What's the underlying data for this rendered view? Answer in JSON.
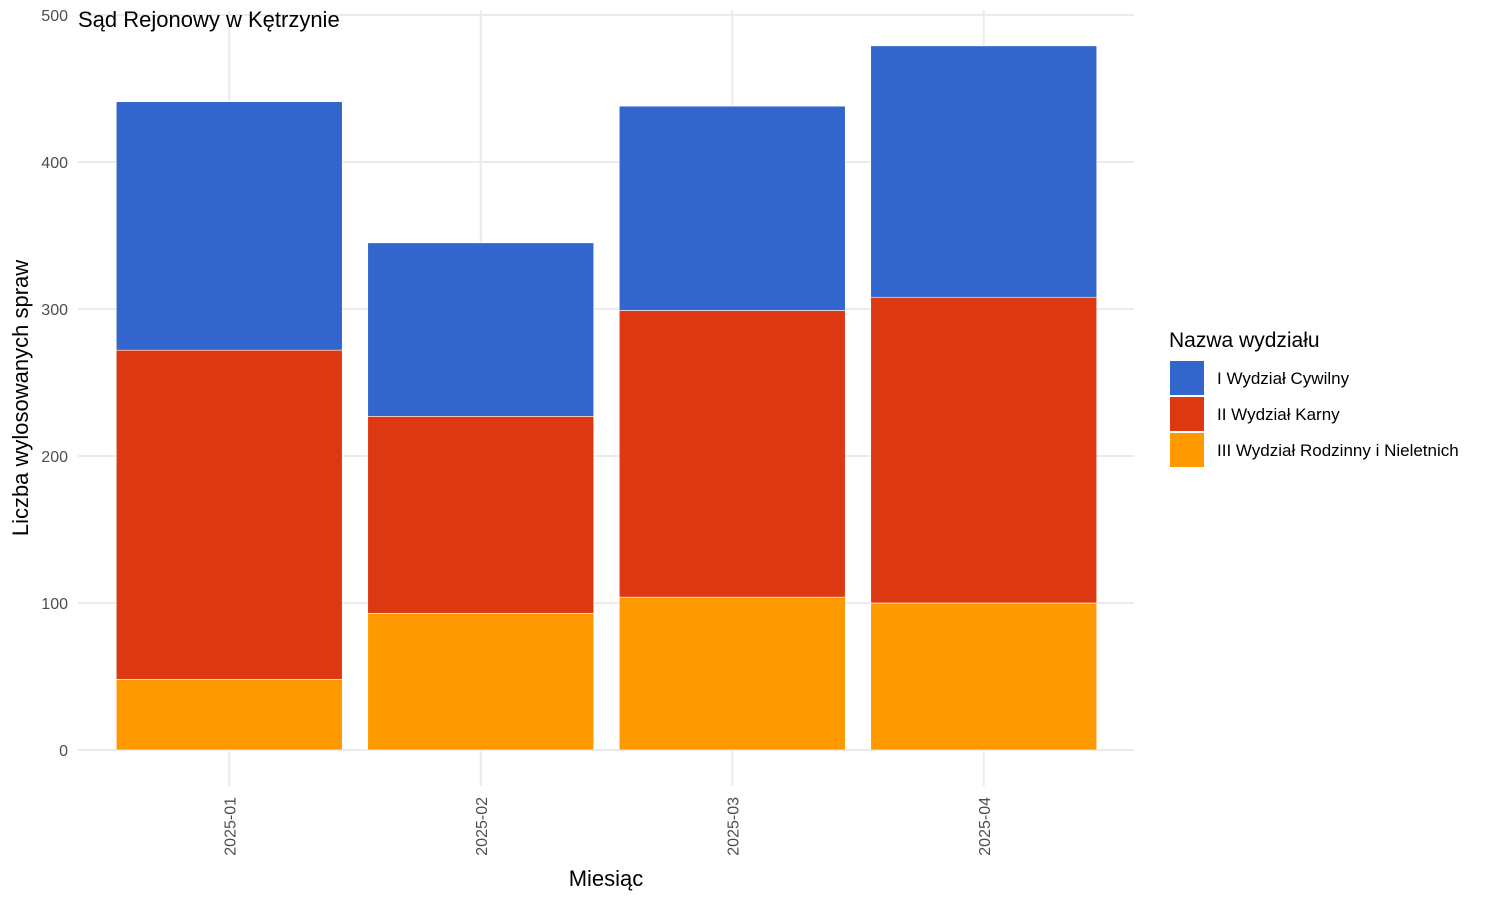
{
  "chart_data": {
    "type": "bar",
    "stacked": true,
    "title": "Sąd Rejonowy w Kętrzynie",
    "xlabel": "Miesiąc",
    "ylabel": "Liczba wylosowanych spraw",
    "categories": [
      "2025-01",
      "2025-02",
      "2025-03",
      "2025-04"
    ],
    "ylim": [
      0,
      500
    ],
    "yticks": [
      0,
      100,
      200,
      300,
      400,
      500
    ],
    "grid": true,
    "legend": {
      "title": "Nazwa wydziału",
      "placement": "right"
    },
    "series": [
      {
        "name": "III Wydział Rodzinny i Nieletnich",
        "color": "#FF9900",
        "values": [
          48,
          93,
          104,
          100
        ]
      },
      {
        "name": "II Wydział Karny",
        "color": "#DC3912",
        "values": [
          224,
          134,
          195,
          208
        ]
      },
      {
        "name": "I Wydział Cywilny",
        "color": "#3366CC",
        "values": [
          169,
          118,
          139,
          171
        ]
      }
    ],
    "legend_order": [
      "I Wydział Cywilny",
      "II Wydział Karny",
      "III Wydział Rodzinny i Nieletnich"
    ]
  }
}
